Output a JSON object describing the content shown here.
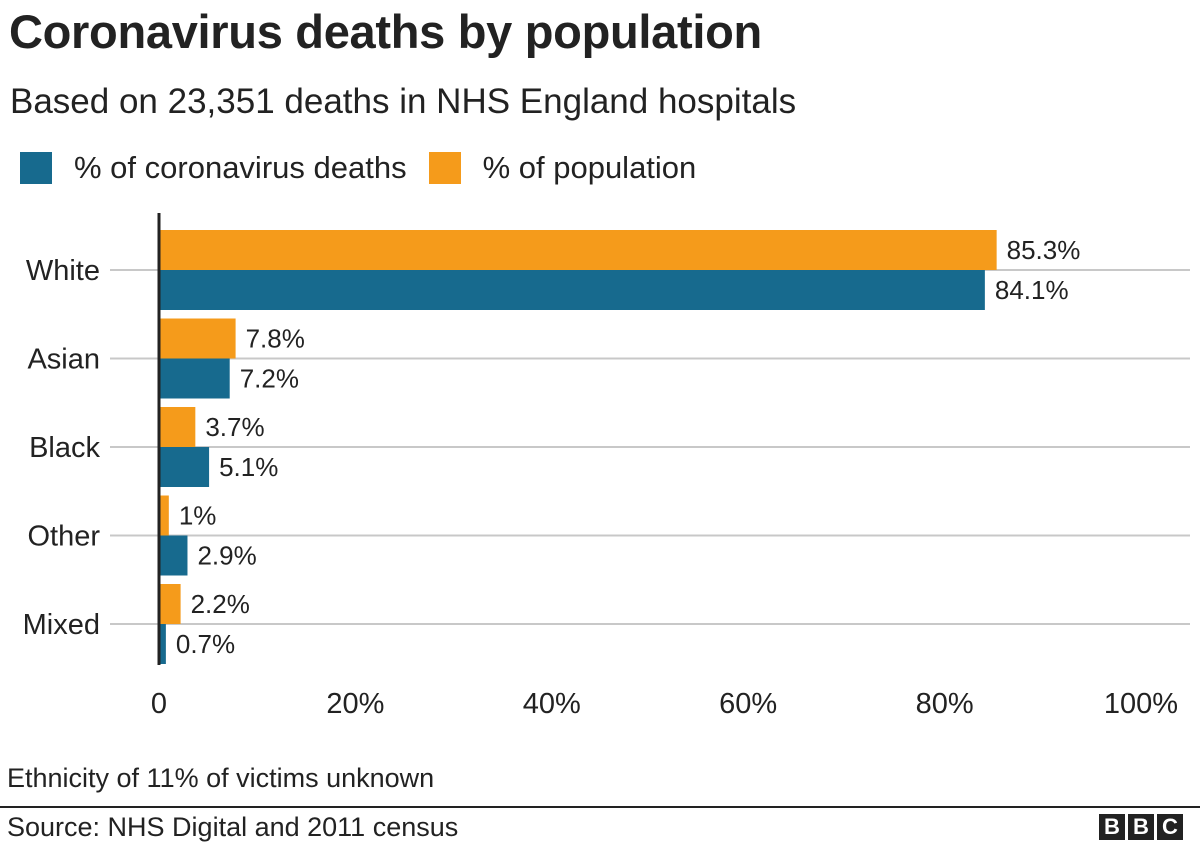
{
  "title": "Coronavirus deaths by population",
  "subtitle": "Based on 23,351 deaths in NHS England hospitals",
  "colors": {
    "deaths": "#176a8e",
    "population": "#f59b1b",
    "grid": "#c8c8c8",
    "axis": "#222222"
  },
  "chart_data": {
    "type": "bar",
    "orientation": "horizontal",
    "categories": [
      "White",
      "Asian",
      "Black",
      "Other",
      "Mixed"
    ],
    "series": [
      {
        "name": "% of coronavirus deaths",
        "values": [
          84.1,
          7.2,
          5.1,
          2.9,
          0.7
        ],
        "labels": [
          "84.1%",
          "7.2%",
          "5.1%",
          "2.9%",
          "0.7%"
        ]
      },
      {
        "name": "% of population",
        "values": [
          85.3,
          7.8,
          3.7,
          1,
          2.2
        ],
        "labels": [
          "85.3%",
          "7.8%",
          "3.7%",
          "1%",
          "2.2%"
        ]
      }
    ],
    "xlim": [
      0,
      100
    ],
    "xticks": [
      "0",
      "20%",
      "40%",
      "60%",
      "80%",
      "100%"
    ],
    "grid": true,
    "legend": "top-left"
  },
  "footnote": "Ethnicity of 11% of victims unknown",
  "source": "Source: NHS Digital and 2011 census",
  "logo": [
    "B",
    "B",
    "C"
  ]
}
